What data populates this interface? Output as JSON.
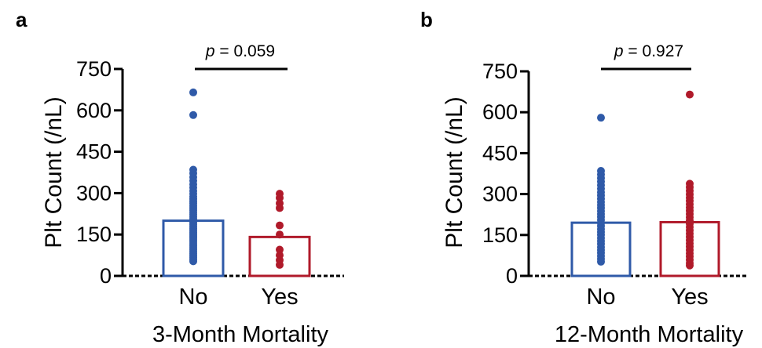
{
  "chart_data": [
    {
      "type": "bar",
      "panel": "a",
      "xlabel": "3-Month Mortality",
      "ylabel": "Plt Count (/nL)",
      "ylim": [
        0,
        750
      ],
      "yticks": [
        0,
        150,
        300,
        450,
        600,
        750
      ],
      "categories": [
        "No",
        "Yes"
      ],
      "values": [
        200,
        141
      ],
      "colors": [
        "#2f5aa8",
        "#b01a2a"
      ],
      "points": [
        [
          665,
          583,
          385,
          372,
          358,
          345,
          332,
          320,
          308,
          298,
          288,
          279,
          270,
          262,
          254,
          246,
          238,
          230,
          222,
          214,
          207,
          200,
          193,
          186,
          179,
          172,
          165,
          158,
          151,
          144,
          137,
          130,
          123,
          116,
          109,
          102,
          95,
          88,
          81,
          74,
          67,
          60,
          53
        ],
        [
          298,
          283,
          263,
          246,
          183,
          150,
          95,
          75,
          57,
          40
        ]
      ],
      "significance": {
        "label_prefix": "p",
        "label_value": " = 0.059"
      }
    },
    {
      "type": "bar",
      "panel": "b",
      "xlabel": "12-Month Mortality",
      "ylabel": "Plt Count (/nL)",
      "ylim": [
        0,
        750
      ],
      "yticks": [
        0,
        150,
        300,
        450,
        600,
        750
      ],
      "categories": [
        "No",
        "Yes"
      ],
      "values": [
        195,
        197
      ],
      "colors": [
        "#2f5aa8",
        "#b01a2a"
      ],
      "points": [
        [
          580,
          385,
          372,
          359,
          346,
          333,
          320,
          307,
          295,
          283,
          271,
          260,
          249,
          238,
          227,
          216,
          205,
          194,
          183,
          172,
          161,
          150,
          139,
          128,
          117,
          106,
          95,
          84,
          73,
          62,
          52
        ],
        [
          665,
          338,
          325,
          312,
          299,
          287,
          275,
          263,
          251,
          239,
          227,
          215,
          203,
          191,
          179,
          167,
          155,
          143,
          131,
          119,
          107,
          95,
          83,
          71,
          59,
          47,
          38
        ]
      ],
      "significance": {
        "label_prefix": "p",
        "label_value": " = 0.927"
      }
    }
  ]
}
